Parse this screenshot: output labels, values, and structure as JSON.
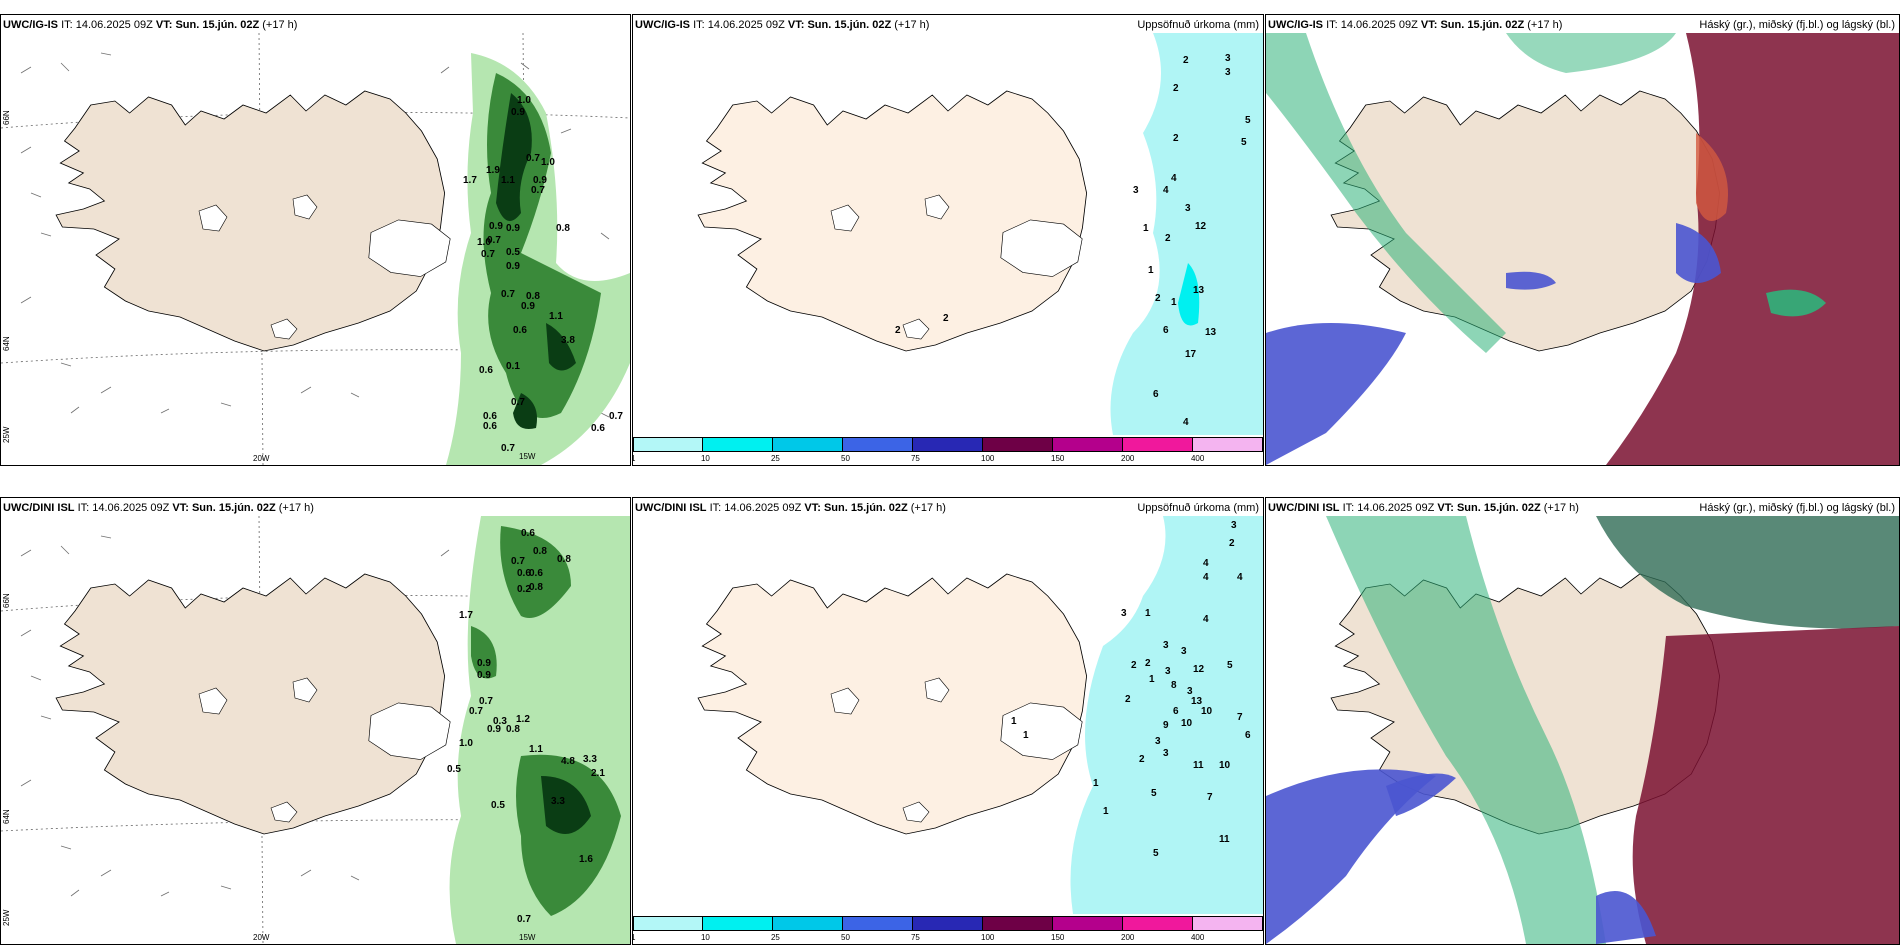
{
  "rows": [
    {
      "model": "UWC/IG-IS",
      "it_label": "IT:",
      "it_time": "14.06.2025 09Z",
      "vt_label": "VT:",
      "vt_time": "Sun. 15.jún. 02Z",
      "lead": "(+17 h)",
      "wind_values": [
        "1.0",
        "0.9",
        "0.7",
        "1.0",
        "0.9",
        "1.7",
        "1.9",
        "1.1",
        "0.7",
        "0.9",
        "0.7",
        "0.9",
        "0.5",
        "1.0",
        "0.7",
        "0.9",
        "0.8",
        "0.7",
        "0.8",
        "0.9",
        "0.6",
        "1.1",
        "3.8",
        "0.6",
        "0.1",
        "0.7",
        "0.6",
        "0.6",
        "0.7",
        "0.6",
        "0.7"
      ],
      "precip_values": [
        "2",
        "3",
        "3",
        "2",
        "5",
        "5",
        "2",
        "4",
        "3",
        "4",
        "3",
        "1",
        "2",
        "12",
        "1",
        "13",
        "2",
        "1",
        "6",
        "13",
        "2",
        "17",
        "2",
        "6",
        "4"
      ]
    },
    {
      "model": "UWC/DINI ISL",
      "it_label": "IT:",
      "it_time": "14.06.2025 09Z",
      "vt_label": "VT:",
      "vt_time": "Sun. 15.jún. 02Z",
      "lead": "(+17 h)",
      "wind_values": [
        "0.6",
        "0.8",
        "0.7",
        "0.8",
        "0.6",
        "0.6",
        "0.2",
        "0.8",
        "1.7",
        "0.9",
        "0.9",
        "0.7",
        "0.7",
        "0.9",
        "0.8",
        "1.2",
        "0.3",
        "1.0",
        "0.5",
        "1.1",
        "4.8",
        "3.3",
        "2.1",
        "3.3",
        "0.5",
        "1.6",
        "0.7"
      ],
      "precip_values": [
        "3",
        "2",
        "4",
        "4",
        "4",
        "3",
        "1",
        "4",
        "3",
        "3",
        "2",
        "5",
        "2",
        "3",
        "1",
        "8",
        "3",
        "12",
        "2",
        "13",
        "6",
        "10",
        "9",
        "10",
        "7",
        "1",
        "3",
        "6",
        "1",
        "3",
        "2",
        "11",
        "10",
        "1",
        "5",
        "7",
        "1",
        "5",
        "11"
      ]
    }
  ],
  "precip_title": "Uppsöfnuð úrkoma (mm)",
  "cloud_title": "Háský (gr.), miðský (fj.bl.) og lágský (bl.)",
  "axis_labels": {
    "lon_20w": "20W",
    "lon_15w": "15W",
    "lon_25w": "25W",
    "lat_66n": "66N",
    "lat_64n": "64N"
  },
  "colorbar": {
    "ticks": [
      "1",
      "10",
      "25",
      "50",
      "75",
      "100",
      "150",
      "200",
      "400"
    ],
    "colors": [
      "#b3f7f7",
      "#00f0f0",
      "#00c8e8",
      "#3c64e6",
      "#2828b4",
      "#6e0046",
      "#b4008c",
      "#f0189c",
      "#f4b4f0"
    ]
  },
  "colors": {
    "land": "#efe2d3",
    "land_precip": "#fdf0e3",
    "precip_light": "#b0f5f5",
    "green_dark": "#0a3d14",
    "green_mid": "#3a8a3a",
    "green_light": "#b5e6b0",
    "cloud_high": "#2fb37a",
    "cloud_mid": "#4a55d0",
    "cloud_low": "#7a1030"
  }
}
